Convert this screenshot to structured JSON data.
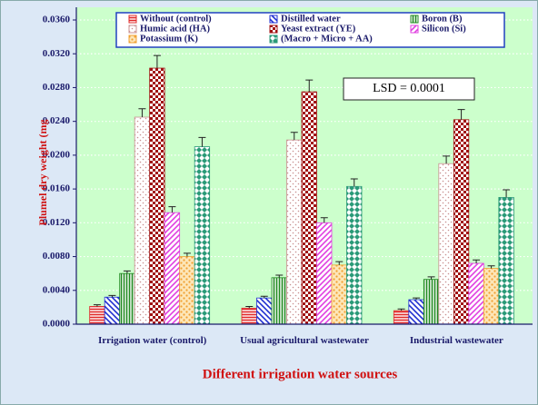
{
  "chart_data": {
    "type": "bar",
    "y_label": "Plumel dry weight (mg",
    "x_label": "Different irrigation water sources",
    "annotation": "LSD = 0.0001",
    "categories": [
      "Irrigation water (control)",
      "Usual agricultural wastewater",
      "Industrial wastewater"
    ],
    "ylim": [
      0,
      0.036
    ],
    "yticks": [
      {
        "value": 0,
        "label": "0.0000"
      },
      {
        "value": 0.004,
        "label": "0.0040"
      },
      {
        "value": 0.008,
        "label": "0.0080"
      },
      {
        "value": 0.012,
        "label": "0.0120"
      },
      {
        "value": 0.016,
        "label": "0.0160"
      },
      {
        "value": 0.02,
        "label": "0.0200"
      },
      {
        "value": 0.024,
        "label": "0.0240"
      },
      {
        "value": 0.028,
        "label": "0.0280"
      },
      {
        "value": 0.032,
        "label": "0.0320"
      },
      {
        "value": 0.036,
        "label": "0.0360"
      }
    ],
    "grid": true,
    "series": [
      {
        "name": "Without (control)",
        "color": "#e02828",
        "hatch": "hlines",
        "values": [
          0.0021,
          0.0019,
          0.0016
        ],
        "errors": [
          0.0002,
          0.0002,
          0.0002
        ]
      },
      {
        "name": "Distilled water",
        "color": "#1f2fd0",
        "hatch": "bdiag",
        "values": [
          0.0032,
          0.0031,
          0.0029
        ],
        "errors": [
          0.0002,
          0.0002,
          0.0002
        ]
      },
      {
        "name": "Boron (B)",
        "color": "#1f8a1f",
        "hatch": "vlines",
        "values": [
          0.006,
          0.0055,
          0.0053
        ],
        "errors": [
          0.0003,
          0.0003,
          0.0003
        ]
      },
      {
        "name": "Humic acid (HA)",
        "color": "#c89090",
        "hatch": "dots",
        "values": [
          0.0245,
          0.0218,
          0.019
        ],
        "errors": [
          0.001,
          0.0009,
          0.0009
        ]
      },
      {
        "name": "Yeast extract (YE)",
        "color": "#a01010",
        "hatch": "check",
        "values": [
          0.0303,
          0.0275,
          0.0242
        ],
        "errors": [
          0.0015,
          0.0014,
          0.0012
        ]
      },
      {
        "name": "Silicon (Si)",
        "color": "#e040e0",
        "hatch": "fdiag",
        "values": [
          0.0132,
          0.012,
          0.0072
        ],
        "errors": [
          0.0007,
          0.0006,
          0.0004
        ]
      },
      {
        "name": "Potassium (K)",
        "color": "#f0a030",
        "hatch": "dots2",
        "values": [
          0.008,
          0.007,
          0.0066
        ],
        "errors": [
          0.0004,
          0.0004,
          0.0003
        ]
      },
      {
        "name": "(Macro + Micro + AA)",
        "color": "#2a9a78",
        "hatch": "diamond",
        "values": [
          0.021,
          0.0163,
          0.015
        ],
        "errors": [
          0.0011,
          0.0009,
          0.0009
        ]
      }
    ]
  }
}
